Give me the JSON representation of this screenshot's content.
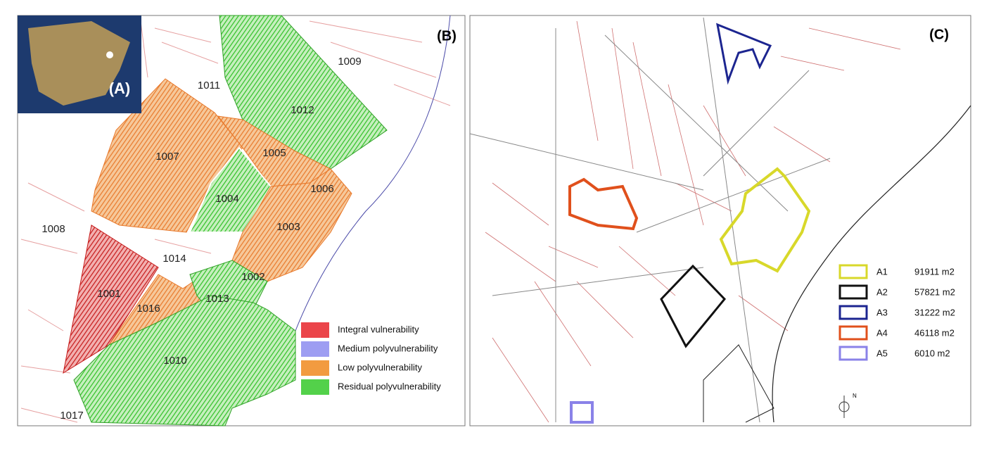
{
  "inset": {
    "label": "(A)"
  },
  "panel_b": {
    "label": "(B)",
    "districts": [
      "1009",
      "1011",
      "1012",
      "1007",
      "1005",
      "1006",
      "1004",
      "1003",
      "1008",
      "1014",
      "1002",
      "1001",
      "1016",
      "1013",
      "1010",
      "1017"
    ],
    "legend": [
      {
        "label": "Integral vulnerability",
        "color": "#e8252a"
      },
      {
        "label": "Medium polyvulnerability",
        "color": "#8c8cf0"
      },
      {
        "label": "Low polyvulnerability",
        "color": "#f08a1e"
      },
      {
        "label": "Residual polyvulnerability",
        "color": "#35c92a"
      }
    ]
  },
  "panel_c": {
    "label": "(C)",
    "areas": [
      {
        "name": "A1",
        "area": "91911 m2",
        "color": "#d8d82a"
      },
      {
        "name": "A2",
        "area": "57821 m2",
        "color": "#111111"
      },
      {
        "name": "A3",
        "area": "31222 m2",
        "color": "#1c2590"
      },
      {
        "name": "A4",
        "area": "46118 m2",
        "color": "#e0501c"
      },
      {
        "name": "A5",
        "area": "6010 m2",
        "color": "#8a82e8"
      }
    ],
    "north": "N"
  }
}
